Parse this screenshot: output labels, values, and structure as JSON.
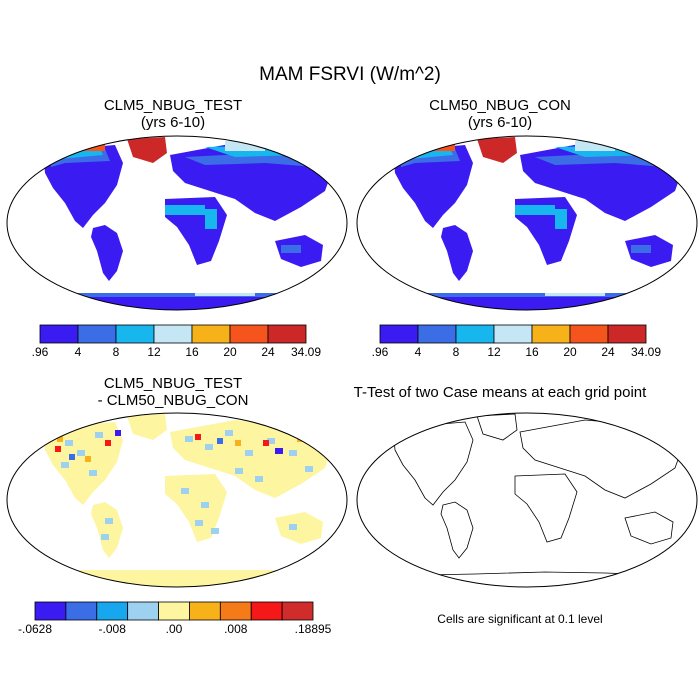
{
  "title": "MAM FSRVI (W/m^2)",
  "panels": [
    {
      "title_line1": "CLM5_NBUG_TEST",
      "title_line2": "(yrs 6-10)"
    },
    {
      "title_line1": "CLM50_NBUG_CON",
      "title_line2": "(yrs 6-10)"
    },
    {
      "title_line1": "CLM5_NBUG_TEST",
      "title_line2": "- CLM50_NBUG_CON"
    },
    {
      "title_line1": "T-Test of two Case means at each grid point",
      "footnote": "Cells are significant at 0.1 level"
    }
  ],
  "colorbar_abs": {
    "colors": [
      "#3a1cf2",
      "#3a6de6",
      "#18b6ef",
      "#c4e6f5",
      "#f7b21a",
      "#f5541c",
      "#cc2828"
    ],
    "labels": [
      ".96",
      "4",
      "8",
      "12",
      "16",
      "20",
      "24",
      "34.09"
    ]
  },
  "colorbar_diff": {
    "colors": [
      "#3a1cf2",
      "#3a6de6",
      "#18a6ef",
      "#9ed0ef",
      "#fdf5a0",
      "#f7b21a",
      "#f57a18",
      "#f51818",
      "#d02c2c"
    ],
    "labels": [
      ".0628",
      ".008",
      ".00",
      ".008",
      ".18895"
    ],
    "label_minus": [
      "-",
      "-",
      "",
      "",
      ""
    ]
  }
}
